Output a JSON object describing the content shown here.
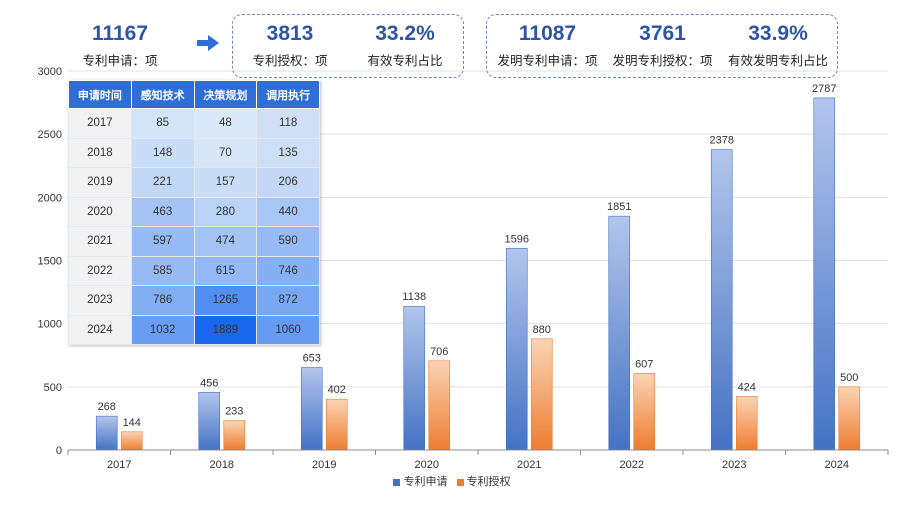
{
  "stats": {
    "applications": {
      "value": "11167",
      "label": "专利申请：项"
    },
    "grants": {
      "value": "3813",
      "label": "专利授权：项"
    },
    "valid_ratio": {
      "value": "33.2%",
      "label": "有效专利占比"
    },
    "invention_applications": {
      "value": "11087",
      "label": "发明专利申请：项"
    },
    "invention_grants": {
      "value": "3761",
      "label": "发明专利授权：项"
    },
    "invention_valid_ratio": {
      "value": "33.9%",
      "label": "有效发明专利占比"
    }
  },
  "table": {
    "headers": [
      "申请时间",
      "感知技术",
      "决策规划",
      "调用执行"
    ],
    "rows": [
      [
        "2017",
        "85",
        "48",
        "118"
      ],
      [
        "2018",
        "148",
        "70",
        "135"
      ],
      [
        "2019",
        "221",
        "157",
        "206"
      ],
      [
        "2020",
        "463",
        "280",
        "440"
      ],
      [
        "2021",
        "597",
        "474",
        "590"
      ],
      [
        "2022",
        "585",
        "615",
        "746"
      ],
      [
        "2023",
        "786",
        "1265",
        "872"
      ],
      [
        "2024",
        "1032",
        "1889",
        "1060"
      ]
    ]
  },
  "colors": {
    "apply_top": "#b3c5ec",
    "apply_bottom": "#4472c4",
    "grant_top": "#fbd4b4",
    "grant_bottom": "#ed7d31",
    "header": "#2f6ed4",
    "stat_text": "#2e55a5"
  },
  "chart_data": {
    "type": "bar",
    "categories": [
      "2017",
      "2018",
      "2019",
      "2020",
      "2021",
      "2022",
      "2023",
      "2024"
    ],
    "series": [
      {
        "name": "专利申请",
        "values": [
          268,
          456,
          653,
          1138,
          1596,
          1851,
          2378,
          2787
        ]
      },
      {
        "name": "专利授权",
        "values": [
          144,
          233,
          402,
          706,
          880,
          607,
          424,
          500
        ]
      }
    ],
    "yticks": [
      0,
      500,
      1000,
      1500,
      2000,
      2500,
      3000
    ],
    "ylim": [
      0,
      3000
    ],
    "grid": true,
    "legend": "bottom-center",
    "title": "",
    "xlabel": "",
    "ylabel": ""
  }
}
